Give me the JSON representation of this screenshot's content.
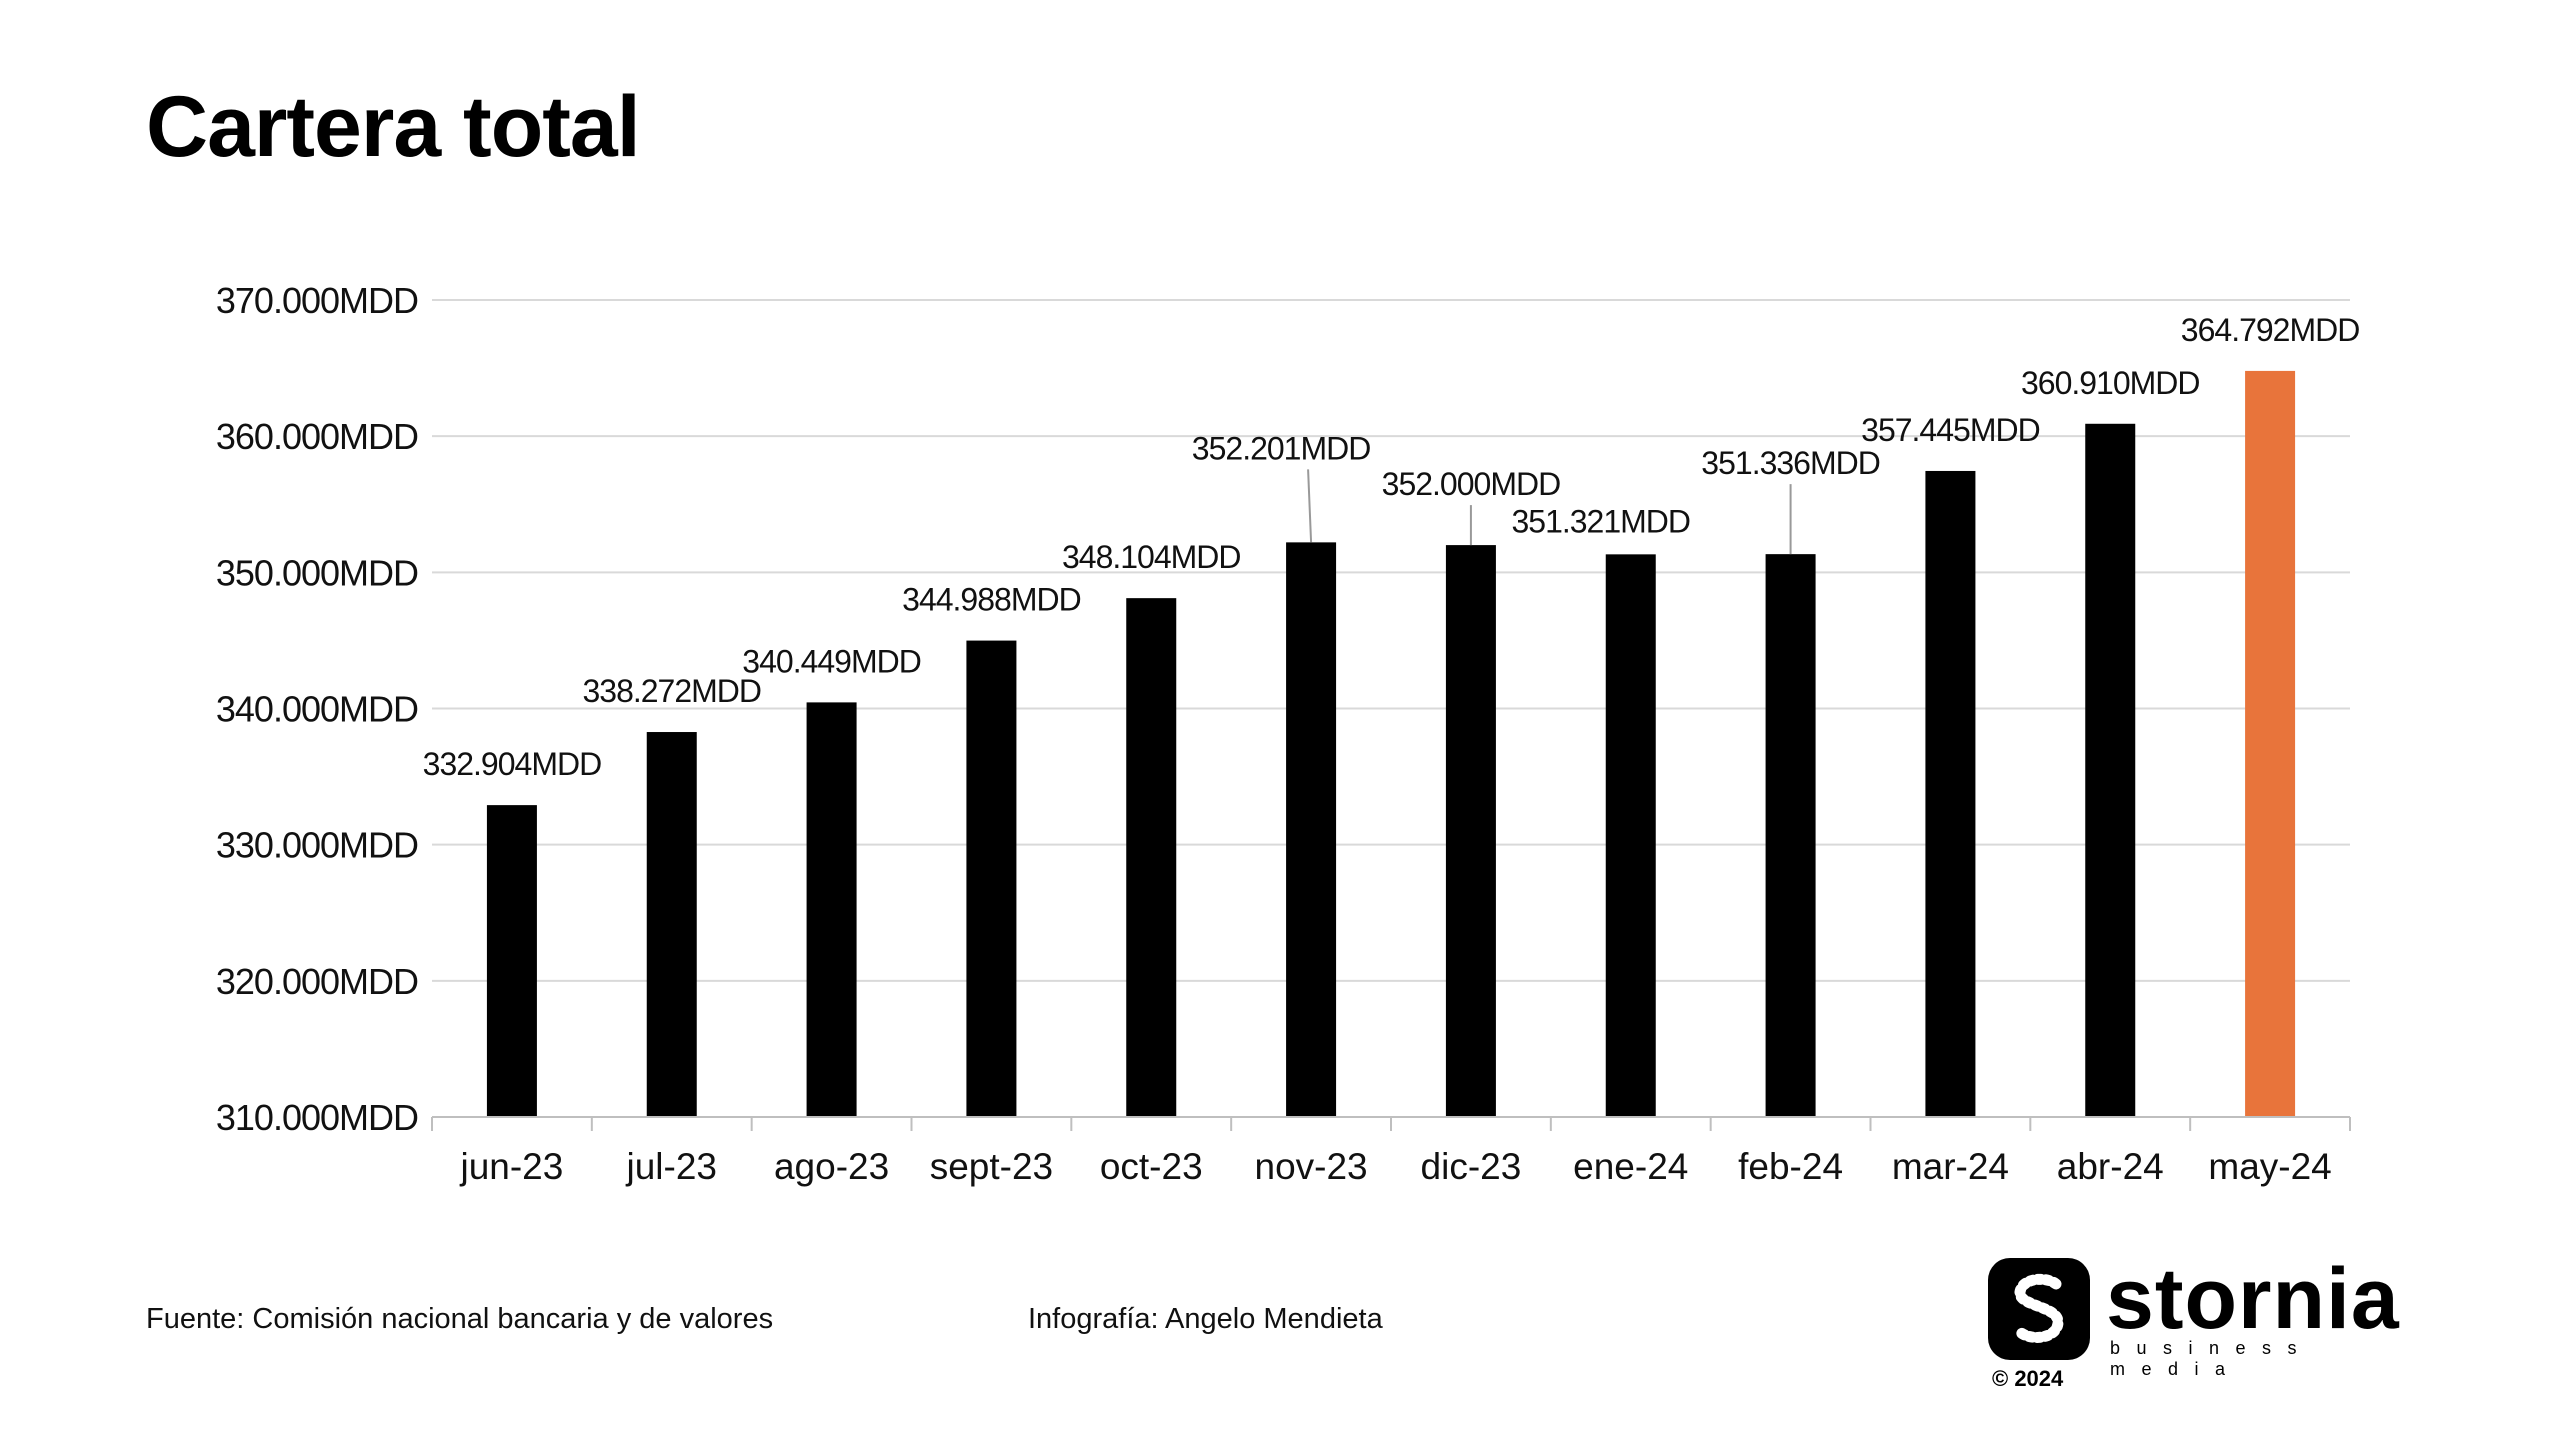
{
  "header": {
    "title": "Cartera total"
  },
  "colors": {
    "bar": "#000000",
    "highlight": "#E8743B",
    "grid": "#d9d9d9"
  },
  "chart_data": {
    "type": "bar",
    "title": "Cartera total",
    "categories": [
      "jun-23",
      "jul-23",
      "ago-23",
      "sept-23",
      "oct-23",
      "nov-23",
      "dic-23",
      "ene-24",
      "feb-24",
      "mar-24",
      "abr-24",
      "may-24"
    ],
    "values": [
      332904,
      338272,
      340449,
      344988,
      348104,
      352201,
      352000,
      351321,
      351336,
      357445,
      360910,
      364792
    ],
    "data_labels": [
      "332.904MDD",
      "338.272MDD",
      "340.449MDD",
      "344.988MDD",
      "348.104MDD",
      "352.201MDD",
      "352.000MDD",
      "351.321MDD",
      "351.336MDD",
      "357.445MDD",
      "360.910MDD",
      "364.792MDD"
    ],
    "highlight_index": 11,
    "yticks": [
      310000,
      320000,
      330000,
      340000,
      350000,
      360000,
      370000
    ],
    "ytick_labels": [
      "310.000MDD",
      "320.000MDD",
      "330.000MDD",
      "340.000MDD",
      "350.000MDD",
      "360.000MDD",
      "370.000MDD"
    ],
    "ylim": [
      310000,
      370000
    ],
    "xlabel": "",
    "ylabel": "",
    "grid": true,
    "legend": "none"
  },
  "footer": {
    "source": "Fuente: Comisión nacional bancaria y de valores",
    "credit": "Infografía: Angelo Mendieta"
  },
  "logo": {
    "icon": "stornia-s-icon",
    "name": "stornia",
    "tagline": "business media",
    "copyright": "© 2024"
  }
}
